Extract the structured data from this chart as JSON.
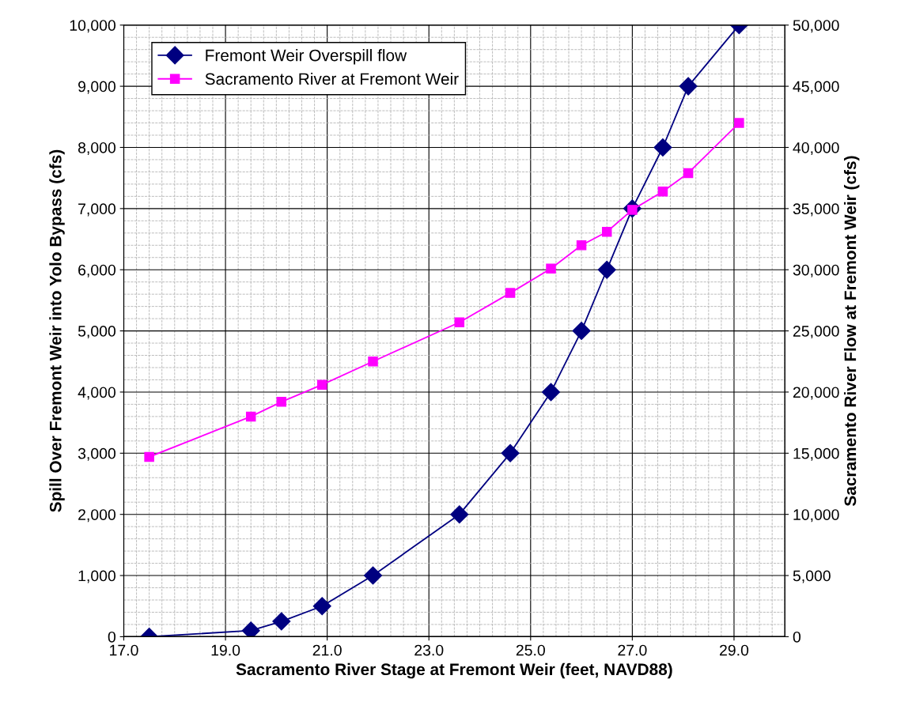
{
  "chart_data": {
    "type": "line",
    "xlabel": "Sacramento River Stage at Fremont Weir (feet, NAVD88)",
    "ylabel": "Spill Over Fremont Weir into Yolo Bypass (cfs)",
    "y2label": "Sacramento River Flow at Fremont Weir (cfs)",
    "x": [
      17.5,
      19.5,
      20.1,
      20.9,
      21.9,
      23.6,
      24.6,
      25.4,
      26.0,
      26.5,
      27.0,
      27.6,
      28.1,
      29.1
    ],
    "series": [
      {
        "name": "Fremont Weir Overspill flow",
        "color": "#000080",
        "marker": "diamond",
        "values": [
          0,
          100,
          250,
          500,
          1000,
          2000,
          3000,
          4000,
          5000,
          6000,
          7000,
          8000,
          9000,
          10000
        ]
      },
      {
        "name": "Sacramento River at Fremont Weir",
        "color": "#ff00ff",
        "marker": "square",
        "axis": "y2",
        "values": [
          14700,
          18000,
          19200,
          20600,
          22500,
          25700,
          28100,
          30100,
          32000,
          33100,
          34900,
          36400,
          37900,
          42000
        ]
      }
    ],
    "xlim": [
      17,
      30
    ],
    "xticks": [
      {
        "value": 17,
        "label": "17.0"
      },
      {
        "value": 19,
        "label": "19.0"
      },
      {
        "value": 21,
        "label": "21.0"
      },
      {
        "value": 23,
        "label": "23.0"
      },
      {
        "value": 25,
        "label": "25.0"
      },
      {
        "value": 27,
        "label": "27.0"
      },
      {
        "value": 29,
        "label": "29.0"
      }
    ],
    "ylim": [
      0,
      10000
    ],
    "yticks": [
      0,
      {
        "value": 1000,
        "label": "1,000"
      },
      {
        "value": 2000,
        "label": "2,000"
      },
      {
        "value": 3000,
        "label": "3,000"
      },
      {
        "value": 4000,
        "label": "4,000"
      },
      {
        "value": 5000,
        "label": "5,000"
      },
      {
        "value": 6000,
        "label": "6,000"
      },
      {
        "value": 7000,
        "label": "7,000"
      },
      {
        "value": 8000,
        "label": "8,000"
      },
      {
        "value": 9000,
        "label": "9,000"
      },
      {
        "value": 10000,
        "label": "10,000"
      }
    ],
    "y2lim": [
      0,
      50000
    ],
    "y2ticks": [
      0,
      {
        "value": 5000,
        "label": "5,000"
      },
      {
        "value": 10000,
        "label": "10,000"
      },
      {
        "value": 15000,
        "label": "15,000"
      },
      {
        "value": 20000,
        "label": "20,000"
      },
      {
        "value": 25000,
        "label": "25,000"
      },
      {
        "value": 30000,
        "label": "30,000"
      },
      {
        "value": 35000,
        "label": "35,000"
      },
      {
        "value": 40000,
        "label": "40,000"
      },
      {
        "value": 45000,
        "label": "45,000"
      },
      {
        "value": 50000,
        "label": "50,000"
      }
    ],
    "grid": true,
    "legend": "top left",
    "line_style": "solid"
  }
}
